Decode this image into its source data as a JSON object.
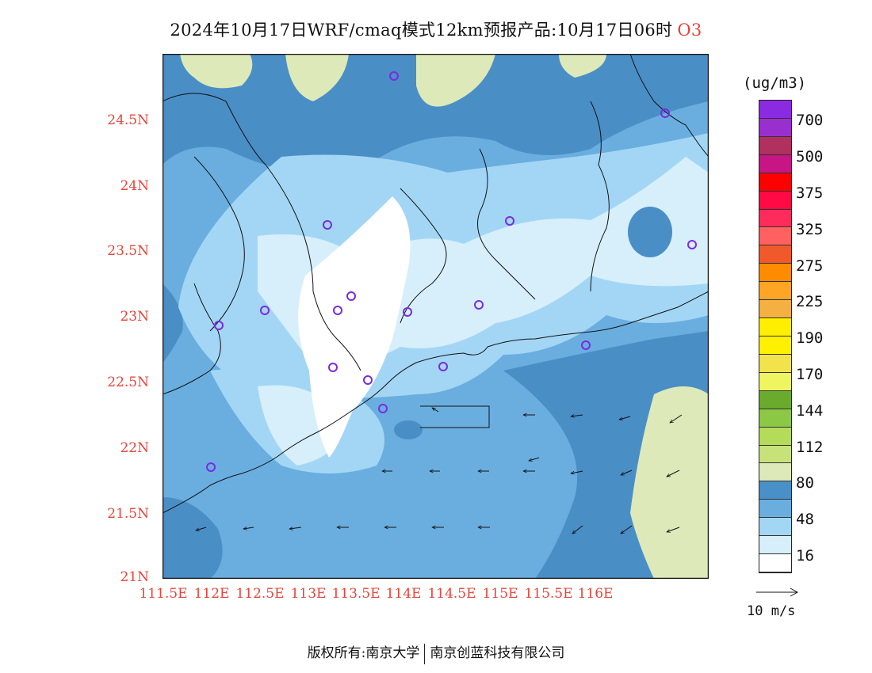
{
  "title": "2024年10月17日WRF/cmaq模式12km预报产品:10月17日06时",
  "species": "O3",
  "unit": "(ug/m3)",
  "lat_ticks": [
    "24.5N",
    "24N",
    "23.5N",
    "23N",
    "22.5N",
    "22N",
    "21.5N",
    "21N"
  ],
  "lon_ticks": [
    "111.5E",
    "112E",
    "112.5E",
    "113E",
    "113.5E",
    "114E",
    "114.5E",
    "115E",
    "115.5E",
    "116E"
  ],
  "colorbar": {
    "colors": [
      "#8a2be2",
      "#9a2fd0",
      "#b03060",
      "#c71585",
      "#ff0000",
      "#ff0a44",
      "#ff2b5a",
      "#ff6060",
      "#f05a2a",
      "#ff8c00",
      "#ffa526",
      "#f5b042",
      "#ffee00",
      "#fff000",
      "#f2e34c",
      "#eef560",
      "#6aab2e",
      "#8cc846",
      "#b4dc5a",
      "#c8e27a",
      "#dde9b9",
      "#4a90c8",
      "#6aaee0",
      "#a3d6f5",
      "#d7effb",
      "#ffffff"
    ],
    "labels": [
      "700",
      "500",
      "375",
      "325",
      "275",
      "225",
      "190",
      "170",
      "144",
      "112",
      "80",
      "48",
      "16"
    ]
  },
  "reference_vector": "10 m/s",
  "footer": {
    "left": "版权所有:南京大学",
    "right": "南京创蓝科技有限公司"
  },
  "colors": {
    "land_low": "#4a8ec6",
    "mid": "#6aaee0",
    "light": "#a3d6f5",
    "pale": "#d7effb",
    "white": "#ffffff",
    "high": "#dde9b9",
    "title_accent": "#e8443a"
  }
}
